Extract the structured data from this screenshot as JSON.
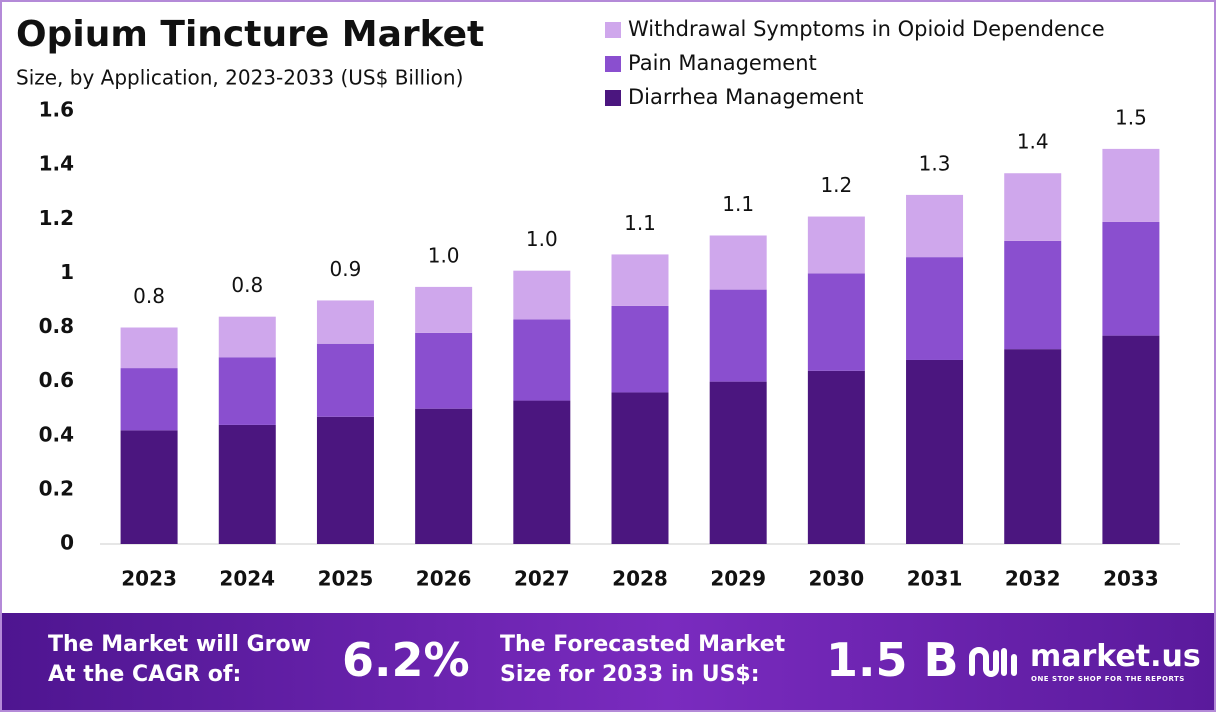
{
  "chart_data": {
    "type": "stacked-bar",
    "title": "Opium Tincture Market",
    "subtitle": "Size, by Application, 2023-2033 (US$ Billion)",
    "categories": [
      "2023",
      "2024",
      "2025",
      "2026",
      "2027",
      "2028",
      "2029",
      "2030",
      "2031",
      "2032",
      "2033"
    ],
    "series": [
      {
        "name": "Diarrhea Management",
        "color": "#4b167f",
        "values": [
          0.42,
          0.44,
          0.47,
          0.5,
          0.53,
          0.56,
          0.6,
          0.64,
          0.68,
          0.72,
          0.77
        ]
      },
      {
        "name": "Pain Management",
        "color": "#8a4fcf",
        "values": [
          0.23,
          0.25,
          0.27,
          0.28,
          0.3,
          0.32,
          0.34,
          0.36,
          0.38,
          0.4,
          0.42
        ]
      },
      {
        "name": "Withdrawal Symptoms in Opioid Dependence",
        "color": "#cfa7ec",
        "values": [
          0.15,
          0.15,
          0.16,
          0.17,
          0.18,
          0.19,
          0.2,
          0.21,
          0.23,
          0.25,
          0.27
        ]
      }
    ],
    "totals": [
      0.8,
      0.84,
      0.9,
      0.95,
      1.01,
      1.07,
      1.14,
      1.21,
      1.29,
      1.37,
      1.46
    ],
    "total_labels": [
      "0.8",
      "0.8",
      "0.9",
      "1.0",
      "1.0",
      "1.1",
      "1.1",
      "1.2",
      "1.3",
      "1.4",
      "1.5"
    ],
    "ylim": [
      0,
      1.6
    ],
    "yticks": [
      0,
      0.2,
      0.4,
      0.6,
      0.8,
      1,
      1.2,
      1.4,
      1.6
    ],
    "grid": false
  },
  "footer": {
    "cagr_text": "The Market will Grow At the CAGR of:",
    "cagr_value": "6.2%",
    "forecast_text": "The Forecasted Market Size for 2033 in US$:",
    "forecast_value": "1.5 B",
    "brand": "market.us",
    "tagline": "ONE STOP SHOP FOR THE REPORTS"
  }
}
